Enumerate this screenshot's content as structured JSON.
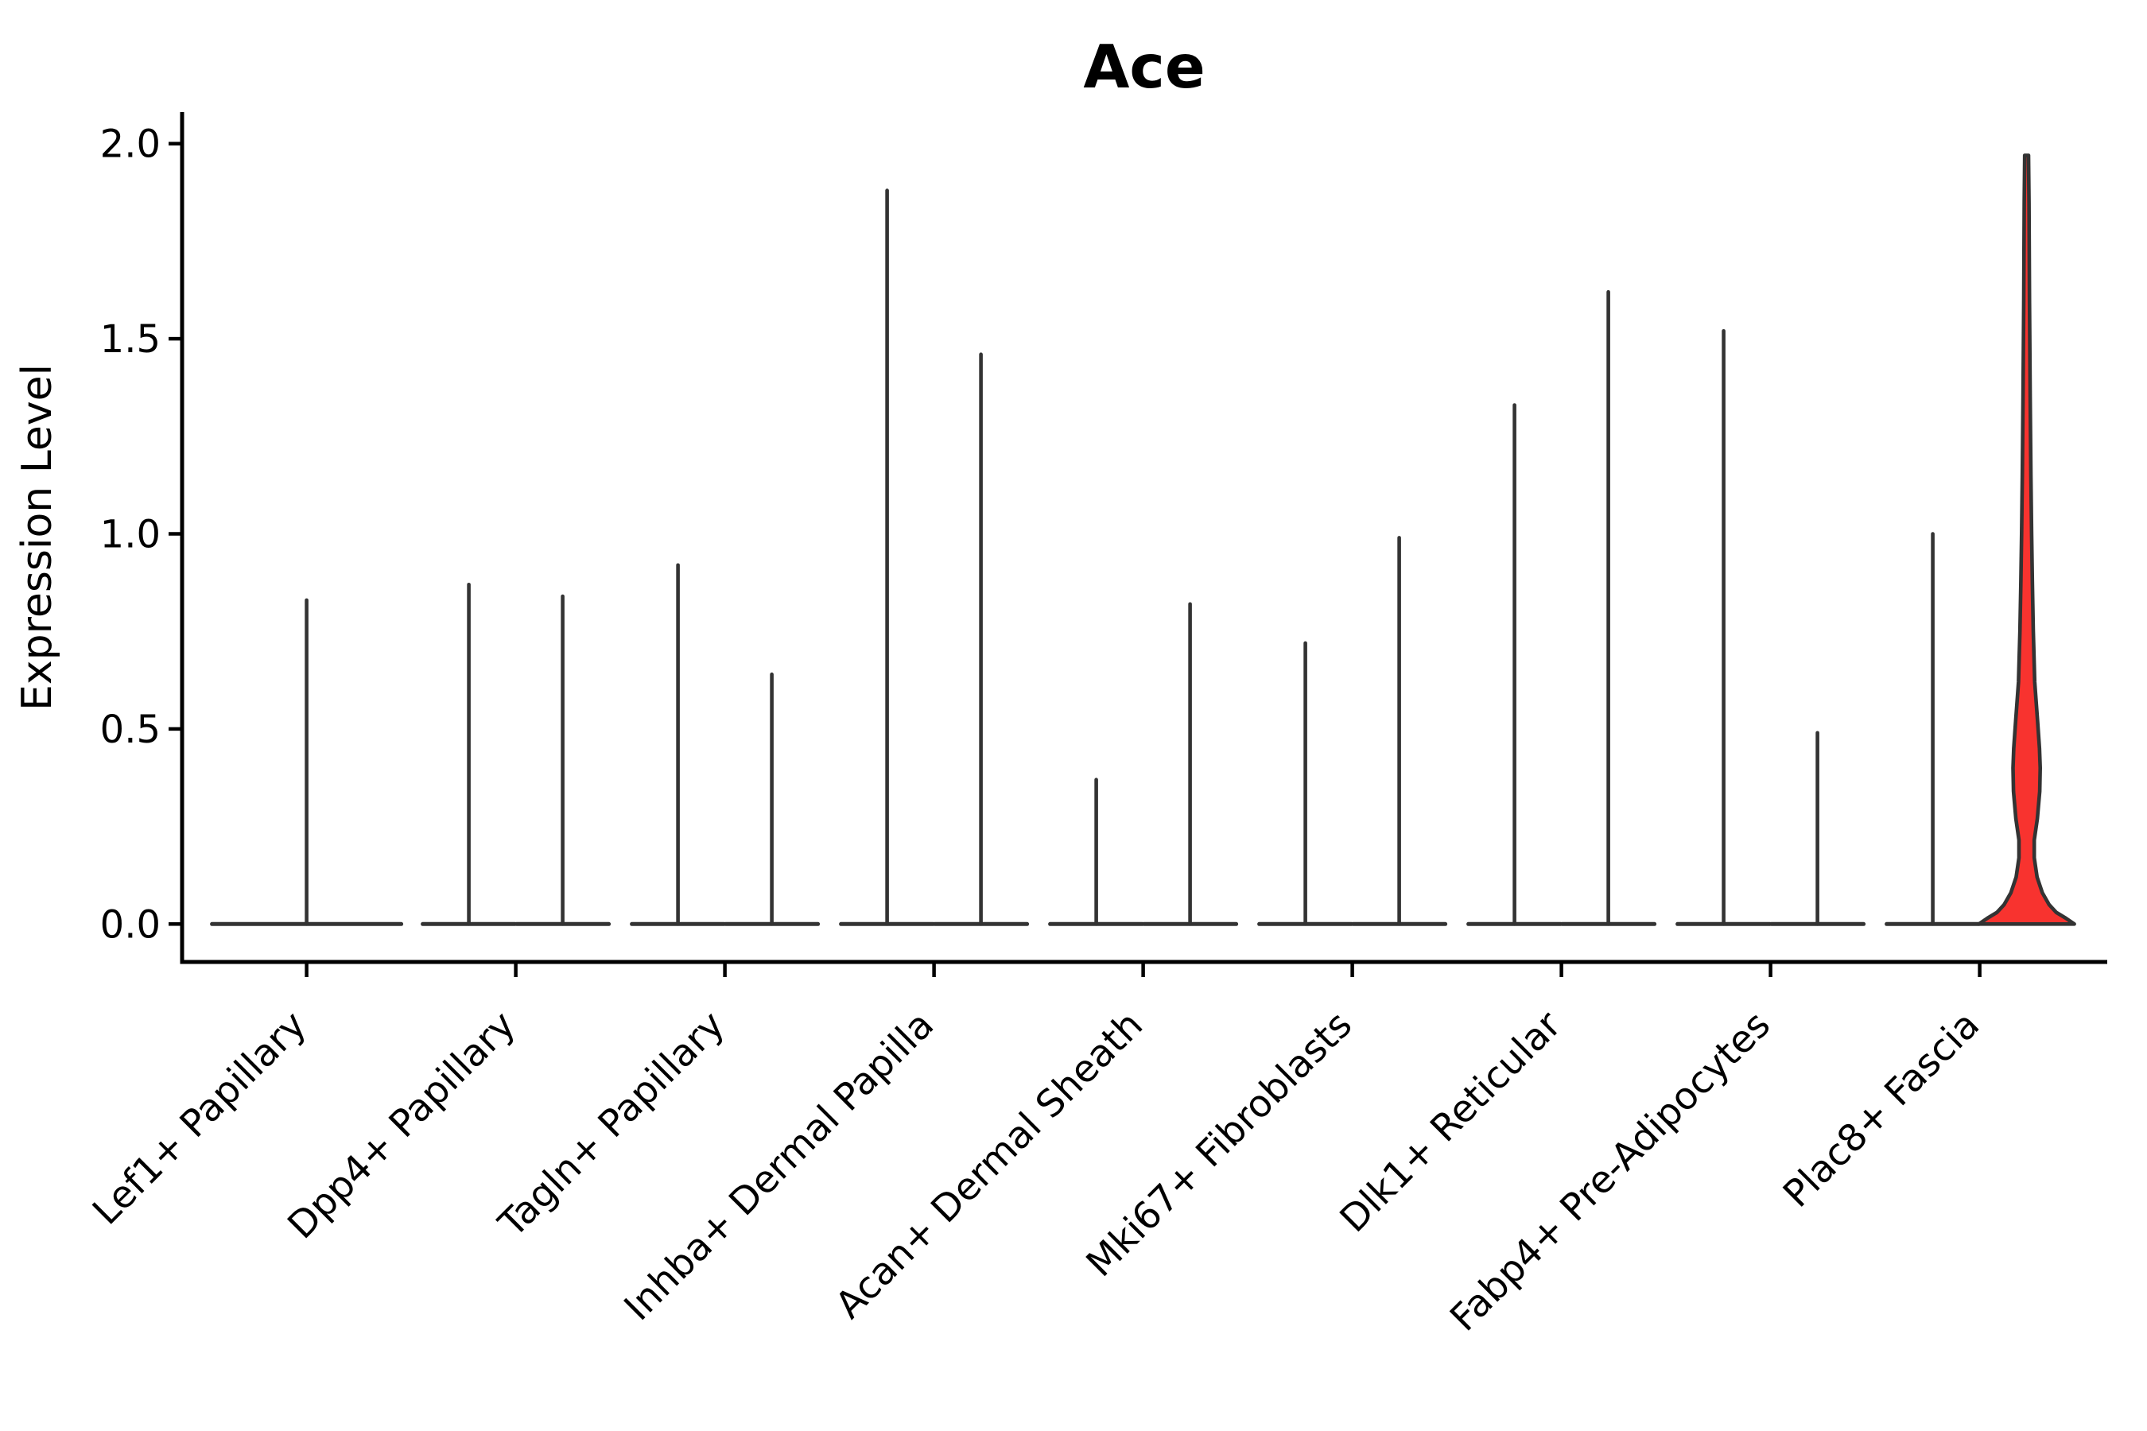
{
  "chart_data": {
    "type": "violin",
    "title": "Ace",
    "ylabel": "Expression Level",
    "xlabel": "",
    "ytick_labels": [
      "0.0",
      "0.5",
      "1.0",
      "1.5",
      "2.0"
    ],
    "ytick_values": [
      0.0,
      0.5,
      1.0,
      1.5,
      2.0
    ],
    "ylim": [
      -0.1,
      2.08
    ],
    "grid": false,
    "legend": "none",
    "colors": {
      "violin_outline": "#333333",
      "axis": "#000000",
      "text": "#000000",
      "highlight_fill": "#f8332f"
    },
    "categories": [
      {
        "label": "Lef1+ Papillary",
        "violins": [
          {
            "kind": "spike",
            "position": "center",
            "max": 0.83
          }
        ]
      },
      {
        "label": "Dpp4+ Papillary",
        "violins": [
          {
            "kind": "spike",
            "position": "left",
            "max": 0.87
          },
          {
            "kind": "spike",
            "position": "right",
            "max": 0.84
          }
        ]
      },
      {
        "label": "Tagln+ Papillary",
        "violins": [
          {
            "kind": "spike",
            "position": "left",
            "max": 0.92
          },
          {
            "kind": "spike",
            "position": "right",
            "max": 0.64
          }
        ]
      },
      {
        "label": "Inhba+ Dermal Papilla",
        "violins": [
          {
            "kind": "spike",
            "position": "left",
            "max": 1.88
          },
          {
            "kind": "spike",
            "position": "right",
            "max": 1.46
          }
        ]
      },
      {
        "label": "Acan+ Dermal Sheath",
        "violins": [
          {
            "kind": "spike",
            "position": "left",
            "max": 0.37
          },
          {
            "kind": "spike",
            "position": "right",
            "max": 0.82
          }
        ]
      },
      {
        "label": "Mki67+ Fibroblasts",
        "violins": [
          {
            "kind": "spike",
            "position": "left",
            "max": 0.72
          },
          {
            "kind": "spike",
            "position": "right",
            "max": 0.99
          }
        ]
      },
      {
        "label": "Dlk1+ Reticular",
        "violins": [
          {
            "kind": "spike",
            "position": "left",
            "max": 1.33
          },
          {
            "kind": "spike",
            "position": "right",
            "max": 1.62
          }
        ]
      },
      {
        "label": "Fabp4+ Pre-Adipocytes",
        "violins": [
          {
            "kind": "spike",
            "position": "left",
            "max": 1.52
          },
          {
            "kind": "spike",
            "position": "right",
            "max": 0.49
          }
        ]
      },
      {
        "label": "Plac8+ Fascia",
        "violins": [
          {
            "kind": "spike",
            "position": "left",
            "max": 1.0
          },
          {
            "kind": "shaped",
            "position": "right",
            "max": 1.97,
            "fill": "#f8332f",
            "profile": [
              [
                1.97,
                0.04
              ],
              [
                1.85,
                0.05
              ],
              [
                1.6,
                0.06
              ],
              [
                1.35,
                0.075
              ],
              [
                1.15,
                0.09
              ],
              [
                1.0,
                0.105
              ],
              [
                0.88,
                0.12
              ],
              [
                0.75,
                0.14
              ],
              [
                0.62,
                0.17
              ],
              [
                0.52,
                0.23
              ],
              [
                0.45,
                0.27
              ],
              [
                0.4,
                0.285
              ],
              [
                0.34,
                0.275
              ],
              [
                0.27,
                0.225
              ],
              [
                0.215,
                0.16
              ],
              [
                0.17,
                0.16
              ],
              [
                0.12,
                0.22
              ],
              [
                0.08,
                0.33
              ],
              [
                0.05,
                0.47
              ],
              [
                0.03,
                0.62
              ],
              [
                0.015,
                0.82
              ],
              [
                0.0,
                1.0
              ]
            ]
          }
        ]
      }
    ]
  }
}
